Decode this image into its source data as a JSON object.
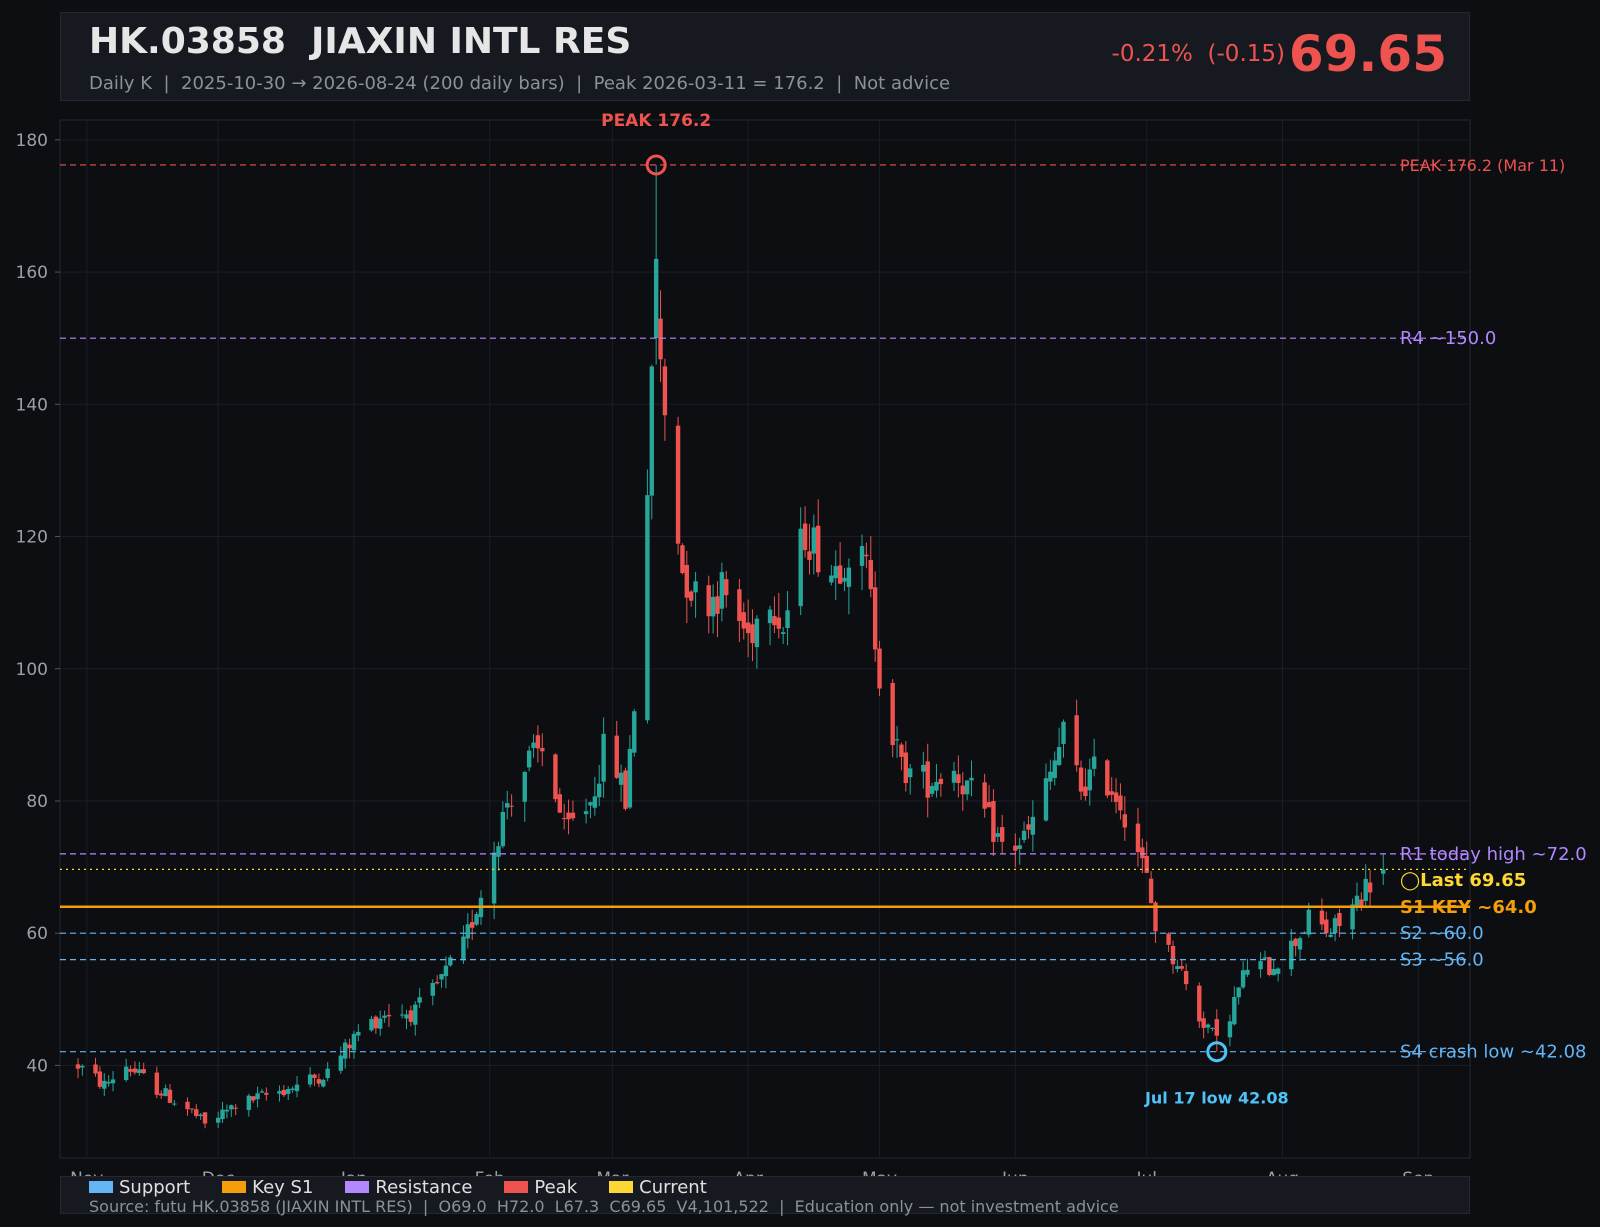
{
  "header": {
    "ticker": "HK.03858  JIAXIN INTL RES",
    "subtitle": "Daily K  |  2025-10-30 → 2026-08-24 (200 daily bars)  |  Peak 2026-03-11 = 176.2  |  Not advice",
    "change": "-0.21%  (-0.15)",
    "price": "69.65"
  },
  "colors": {
    "background": "#0c0e12",
    "up": "#26a69a",
    "down": "#ef5350",
    "support": "#64b5f6",
    "key_support": "#f59e0b",
    "resistance": "#b388ff",
    "peak": "#ef5350",
    "current": "#fdd835",
    "low_marker": "#4fc3f7"
  },
  "legend": [
    {
      "label": "Support",
      "color": "#64b5f6"
    },
    {
      "label": "Key S1",
      "color": "#f59e0b"
    },
    {
      "label": "Resistance",
      "color": "#b388ff"
    },
    {
      "label": "Peak",
      "color": "#ef5350"
    },
    {
      "label": "Current",
      "color": "#fdd835"
    }
  ],
  "footer": {
    "source": "Source: futu HK.03858 (JIAXIN INTL RES)  |  O69.0  H72.0  L67.3  C69.65  V4,101,522  |  Education only — not investment advice"
  },
  "chart_data": {
    "type": "candlestick",
    "x_range": [
      "2025-10-30",
      "2026-08-24"
    ],
    "ylim": [
      26,
      183
    ],
    "y_ticks": [
      40,
      60,
      80,
      100,
      120,
      140,
      160,
      180
    ],
    "x_ticks": [
      {
        "label": "Nov",
        "date": "2025-11-01"
      },
      {
        "label": "Dec",
        "date": "2025-12-01"
      },
      {
        "label": "Jan",
        "date": "2026-01-01"
      },
      {
        "label": "Feb",
        "date": "2026-02-01"
      },
      {
        "label": "Mar",
        "date": "2026-03-01"
      },
      {
        "label": "Apr",
        "date": "2026-04-01"
      },
      {
        "label": "May",
        "date": "2026-05-01"
      },
      {
        "label": "Jun",
        "date": "2026-06-01"
      },
      {
        "label": "Jul",
        "date": "2026-07-01"
      },
      {
        "label": "Aug",
        "date": "2026-08-01"
      },
      {
        "label": "Sep",
        "date": "2026-09-01"
      }
    ],
    "grid": true,
    "legend_position": "bottom",
    "anchor_closes": [
      [
        "2025-10-30",
        40
      ],
      [
        "2025-11-05",
        37
      ],
      [
        "2025-11-10",
        40
      ],
      [
        "2025-11-18",
        36
      ],
      [
        "2025-11-25",
        33
      ],
      [
        "2025-11-28",
        31
      ],
      [
        "2025-12-05",
        34
      ],
      [
        "2025-12-12",
        35.5
      ],
      [
        "2025-12-19",
        37
      ],
      [
        "2025-12-26",
        39
      ],
      [
        "2026-01-02",
        45
      ],
      [
        "2026-01-08",
        48
      ],
      [
        "2026-01-15",
        48
      ],
      [
        "2026-01-20",
        52
      ],
      [
        "2026-01-26",
        58
      ],
      [
        "2026-01-30",
        66
      ],
      [
        "2026-02-05",
        80
      ],
      [
        "2026-02-10",
        86
      ],
      [
        "2026-02-14",
        88
      ],
      [
        "2026-02-18",
        75
      ],
      [
        "2026-02-24",
        80
      ],
      [
        "2026-02-28",
        90
      ],
      [
        "2026-03-04",
        80
      ],
      [
        "2026-03-06",
        95
      ],
      [
        "2026-03-08",
        120
      ],
      [
        "2026-03-09",
        128
      ],
      [
        "2026-03-10",
        142
      ],
      [
        "2026-03-11",
        155
      ],
      [
        "2026-03-12",
        145
      ],
      [
        "2026-03-14",
        132
      ],
      [
        "2026-03-17",
        115
      ],
      [
        "2026-03-21",
        110
      ],
      [
        "2026-03-26",
        112
      ],
      [
        "2026-04-01",
        105
      ],
      [
        "2026-04-06",
        112
      ],
      [
        "2026-04-09",
        106
      ],
      [
        "2026-04-14",
        121
      ],
      [
        "2026-04-20",
        115
      ],
      [
        "2026-04-24",
        118
      ],
      [
        "2026-04-28",
        115
      ],
      [
        "2026-05-02",
        95
      ],
      [
        "2026-05-06",
        85
      ],
      [
        "2026-05-12",
        83
      ],
      [
        "2026-05-18",
        85
      ],
      [
        "2026-05-25",
        78
      ],
      [
        "2026-05-30",
        72
      ],
      [
        "2026-06-04",
        75
      ],
      [
        "2026-06-08",
        82
      ],
      [
        "2026-06-12",
        90
      ],
      [
        "2026-06-16",
        82
      ],
      [
        "2026-06-20",
        85
      ],
      [
        "2026-06-25",
        80
      ],
      [
        "2026-06-28",
        75
      ],
      [
        "2026-07-01",
        68
      ],
      [
        "2026-07-04",
        58
      ],
      [
        "2026-07-08",
        56
      ],
      [
        "2026-07-12",
        48
      ],
      [
        "2026-07-15",
        46
      ],
      [
        "2026-07-17",
        43
      ],
      [
        "2026-07-20",
        48
      ],
      [
        "2026-07-24",
        55
      ],
      [
        "2026-07-29",
        55
      ],
      [
        "2026-08-03",
        58
      ],
      [
        "2026-08-07",
        62
      ],
      [
        "2026-08-12",
        60
      ],
      [
        "2026-08-16",
        63
      ],
      [
        "2026-08-20",
        67
      ],
      [
        "2026-08-24",
        69.65
      ]
    ],
    "peak": {
      "date": "2026-03-11",
      "value": 176.2,
      "label": "PEAK 176.2"
    },
    "low": {
      "date": "2026-07-17",
      "value": 42.08,
      "label": "Jul 17 low 42.08"
    },
    "last": {
      "date": "2026-08-24",
      "open": 69.0,
      "high": 72.0,
      "low": 67.3,
      "close": 69.65
    },
    "levels": [
      {
        "value": 176.2,
        "label": "PEAK 176.2 (Mar 11)",
        "kind": "peak"
      },
      {
        "value": 150.0,
        "label": "R4 ~150.0",
        "kind": "resistance"
      },
      {
        "value": 72.0,
        "label": "R1 today high ~72.0",
        "kind": "resistance"
      },
      {
        "value": 69.65,
        "label": "◯Last 69.65",
        "kind": "current"
      },
      {
        "value": 64.0,
        "label": "S1 KEY ~64.0",
        "kind": "key_support"
      },
      {
        "value": 60.0,
        "label": "S2 ~60.0",
        "kind": "support"
      },
      {
        "value": 56.0,
        "label": "S3 ~56.0",
        "kind": "support"
      },
      {
        "value": 42.08,
        "label": "S4 crash low ~42.08",
        "kind": "support"
      }
    ]
  }
}
